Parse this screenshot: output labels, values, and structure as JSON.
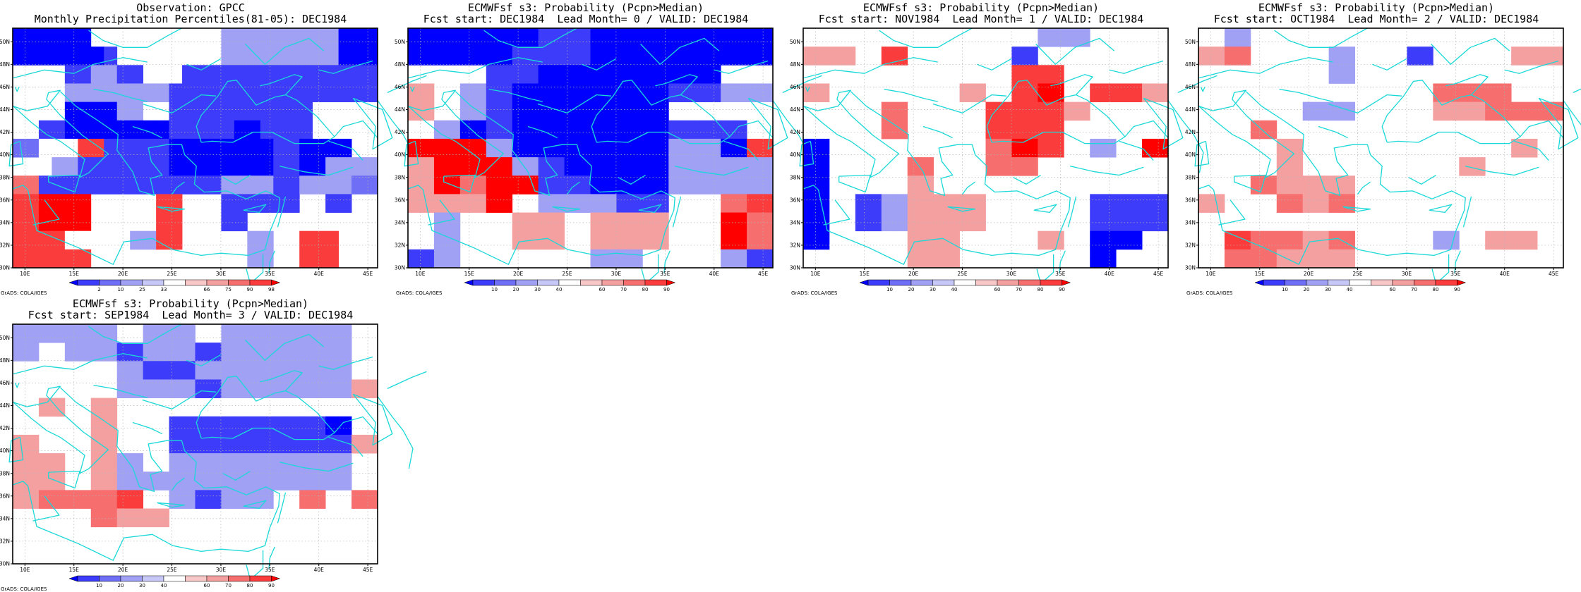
{
  "colors": {
    "blue_strong": "#0000ff",
    "blue_mid": "#3c3cfa",
    "blue_light1": "#6e6ef7",
    "blue_light2": "#a0a0f5",
    "blue_light3": "#c8c8f8",
    "neutral": "#ffffff",
    "red_light3": "#f8c8c8",
    "red_light2": "#f5a0a0",
    "red_light1": "#f76e6e",
    "red_mid": "#fa3c3c",
    "red_strong": "#ff0000",
    "coast": "#1ad8d8",
    "grid": "#b4b4b4"
  },
  "axes": {
    "lon_ticks": [
      "10E",
      "15E",
      "20E",
      "25E",
      "30E",
      "35E",
      "40E",
      "45E"
    ],
    "lat_ticks": [
      "30N",
      "32N",
      "34N",
      "36N",
      "38N",
      "40N",
      "42N",
      "44N",
      "46N",
      "48N",
      "50N"
    ]
  },
  "panels": [
    {
      "title_line1": "Observation: GPCC",
      "title_line2": "Monthly Precipitation Percentiles(81-05): DEC1984",
      "colorbar_labels": [
        "2",
        "10",
        "25",
        "33",
        "66",
        "75",
        "90",
        "98"
      ],
      "credit": "GrADS: COLA/IGES",
      "grid": [
        "BBBBBBWWWWWWWWWWLLLLLLLLLBBB",
        "BBBBBBWWWWWWWWWWLLLLLLLLLBBB",
        "BBBBBBBMWWWWWWWWLLLLLLLLLBBB",
        "BBBBBBBMWWWWWWWWLLLLLLLLLBBB",
        "WWWWMMLLMMWWWMMMMMMMMMMMMMMM",
        "WWWWMMLLMMWWWMMMMMMMMMMMMMMM",
        "WWWWLLLLLLLLMMMMMMMMMMMMMMMM",
        "WWWWLLLLLLLLMMMMMMMMMMMMMMMM",
        "WWWWBBBBLLWWMMMMMMMMMMMWWWWW",
        "WWWWBBBBLLWWMMMMMMMMMMMWWWWW",
        "WWMMBBBBBBBBMMMMMBBMMMMWWWWW",
        "WWMMBBBBBBBBMMMMMBBMMMMWWWWW",
        "bbwwwrrMMMMMBBBBBBBBMMBBBBWW",
        "bbwwwrrMMMMMBBBBBBBBMMBBBBWW",
        "WWWLLMMMMMMMBBBBBBBBMMBBLLLL",
        "WWWLLMMMMMMMBBBBBBBBMMBBLLLL",
        "mmMMMMMMMMMMMMMMLLLLMMLLLLbb",
        "mmMMMMMMMMMMMMMMLLLLMMLLLLbb",
        "rrRRRRWWWWWrrWWWMMMMMMWWMMWW",
        "rrRRRRWWWWWrrWWWMMMMMMWWMMWW",
        "rrRRRRWWWWWrrWWWMMWWWWWWWWWW",
        "rrRRRRWWWWWrrWWWMMWWWWWWWWWW",
        "rrrrwwWWWLLrrWWWWWLLWWrrrWWW",
        "rrrrwwWWWLLrrWWWWWLLWWrrrWWW",
        "rrrrrrWWWWWWWWWWWWLLWWrrrWWW",
        "rrrrrrWWWWWWWWWWWWLLWWrrrWWW"
      ]
    },
    {
      "title_line1": "ECMWFsf s3: Probability (Pcpn>Median)",
      "title_line2": "Fcst start: DEC1984  Lead Month= 0 / VALID: DEC1984",
      "colorbar_labels": [
        "10",
        "20",
        "30",
        "40",
        "60",
        "70",
        "80",
        "90"
      ],
      "credit": "GrADS: COLA/IGES",
      "grid": [
        "BBBBBBBBBBMMMMBBBBBBBBBBBBBB",
        "BBBBBBBBBBMMMMBBBBBBBBBBBBBB",
        "BBBBBBBBMMMMMMBBBBBBBBBBBBBB",
        "BBBBBBBBMMMMMMBBBBBBBBBBBBBB",
        "WWWWWWMMMMBBBBBBBBBBBBBBWWWW",
        "WWWWWWMMMMBBBBBBBBBBBBBBWWWW",
        "ppWWLLMMBBBBBBBBBBBBMMMMLLLL",
        "ppWWLLMMBBBBBBBBBBBBMMMMLLLL",
        "ppWWLLMMBBBBBBBBBBBBWWWWWWWW",
        "ppWWLLMMBBBBBBBBBBBBWWWWWWWW",
        "WWLLBBMMBBBBBBBBBBBBMMMMMMWW",
        "WWLLBBMMBBBBBBBBBBBBMMMMMMWW",
        "RRRRRRLLBBBBBBBBBBBBLLLLBBrr",
        "RRRRRRLLBBBBBBBBBBBBLLLLBBrr",
        "ppRRRRRRLLMMBBBBBBBBLLLLLLLL",
        "ppRRRRRRLLMMBBBBBBBBLLLLLLLL",
        "ppRRmmRRRRMMMMBBBBBBLLLLLLLL",
        "ppRRmmRRRRMMMMBBBBBBLLLLLLLL",
        "ppppppRRWWLLLLLLMMMMWWWWmmrr",
        "ppppppRRWWLLLLLLMMMMWWWWmmrr",
        "WWLLWWWWppppWWppppppWWWWRRmm",
        "WWLLWWWWppppWWppppppWWWWRRmm",
        "WWLLWWWWppppWWppppppWWWWRRmm",
        "WWLLWWWWppppWWppppppWWWWRRmm",
        "MMLLWWWWWWWWWWLLLLWWWWWWLLMM",
        "MMLLWWWWWWWWWWLLLLWWWWWWLLMM"
      ]
    },
    {
      "title_line1": "ECMWFsf s3: Probability (Pcpn>Median)",
      "title_line2": "Fcst start: NOV1984  Lead Month= 1 / VALID: DEC1984",
      "colorbar_labels": [
        "10",
        "20",
        "30",
        "40",
        "60",
        "70",
        "80",
        "90"
      ],
      "credit": "GrADS: COLA/IGES",
      "grid": [
        "WWWWWWWWWWWWWWWWWWLLLLWWWWWW",
        "WWWWWWWWWWWWWWWWWWLLLLWWWWWW",
        "ppppWWrrWWWWWWWWMMWWWWWWWWWW",
        "ppppWWrrWWWWWWWWMMWWWWWWWWWW",
        "WWWWWWWWWWWWWWWWrrrrWWWWWWWW",
        "WWWWWWWWWWWWWWWWrrrrWWWWWWWW",
        "ppWWWWWWWWWWppWWrrRRWWrrrrpp",
        "ppWWWWWWWWWWppWWrrRRWWrrrrpp",
        "WWWWWWmmWWWWWWrrrrrrppWWWWWW",
        "WWWWWWmmWWWWWWrrrrrrppWWWWWW",
        "WWWWWWmmWWWWWWrrrrrrWWWWWWWW",
        "WWWWWWmmWWWWWWrrrrrrWWWWWWWW",
        "BBWWWWWWWWWWWWmmRRrrWWLLWWRR",
        "BBWWWWWWWWWWWWmmRRrrWWLLWWRR",
        "BBWWWWWWmmWWWWmmmmWWWWWWWWWW",
        "BBWWWWWWmmWWWWmmmmWWWWWWWWWW",
        "BBWWWWWWppWWWWWWWWWWWWWWWWWW",
        "BBWWWWWWppWWWWWWWWWWWWWWWWWW",
        "BBWWMMLLppppppWWWWWWWWMMMMMM",
        "BBWWMMLLppppppWWWWWWWWMMMMMM",
        "BBWWMMLLppppppWWWWWWWWMMMMMM",
        "BBWWMMLLppppppWWWWWWWWMMMMMM",
        "BBWWWWWWppppWWWWWWppWWBBBBWW",
        "BBWWWWWWppppWWWWWWppWWBBBBWW",
        "WWWWWWWWppppWWWWWWWWWWBBWWWW",
        "WWWWWWWWppppWWWWWWWWWWBBWWWW"
      ]
    },
    {
      "title_line1": "ECMWFsf s3: Probability (Pcpn>Median)",
      "title_line2": "Fcst start: OCT1984  Lead Month= 2 / VALID: DEC1984",
      "colorbar_labels": [
        "10",
        "20",
        "30",
        "40",
        "60",
        "70",
        "80",
        "90"
      ],
      "credit": "GrADS: COLA/IGES",
      "grid": [
        "WWLLWWWWWWWWWWWWWWWWWWWWWWWW",
        "WWLLWWWWWWWWWWWWWWWWWWWWWWWW",
        "ppmmWWWWWWLLWWWWMMWWWWWWpppp",
        "ppmmWWWWWWLLWWWWMMWWWWWWpppp",
        "WWWWWWWWWWLLWWWWWWWWWWWWWWWW",
        "WWWWWWWWWWLLWWWWWWWWWWWWWWWW",
        "WWWWWWWWWWWWWWWWWWmmmmmmWWWW",
        "WWWWWWWWWWWWWWWWWWmmmmmmWWWW",
        "WWWWWWWWLLLLWWWWWWppppmmmmmm",
        "WWWWWWWWLLLLWWWWWWppppmmmmmm",
        "WWWWmmWWWWWWWWWWWWWWWWWWWWWW",
        "WWWWmmWWWWWWWWWWWWWWWWWWWWWW",
        "WWWWWWppWWWWWWWWWWWWWWWWppWW",
        "WWWWWWppWWWWWWWWWWWWWWWWppWW",
        "WWWWWWppWWWWWWWWWWWWppWWWWWW",
        "WWWWWWppWWWWWWWWWWWWppWWWWWW",
        "WWWWmmppppppWWWWWWWWWWWWWWWW",
        "WWWWmmppppppWWWWWWWWWWWWWWWW",
        "ppWWWWmmppmmWWWWWWWWWWWWWWWW",
        "ppWWWWmmppmmWWWWWWWWWWWWWWWW",
        "WWWWWWWWWWWWWWWWWWWWWWWWWWWW",
        "WWWWWWWWWWWWWWWWWWWWWWWWWWWW",
        "WWrrmmmmppmmWWWWWWLLWWppppWW",
        "WWrrmmmmppmmWWWWWWLLWWppppWW",
        "WWmmmmppppppWWWWWWWWWWWWWWWW",
        "WWmmmmppppppWWWWWWWWWWWWWWWW"
      ]
    },
    {
      "title_line1": "ECMWFsf s3: Probability (Pcpn>Median)",
      "title_line2": "Fcst start: SEP1984  Lead Month= 3 / VALID: DEC1984",
      "colorbar_labels": [
        "10",
        "20",
        "30",
        "40",
        "60",
        "70",
        "80",
        "90"
      ],
      "credit": "GrADS: COLA/IGES",
      "grid": [
        "LLLLLLLLWWLLLLWWLLLLLLLLLLWW",
        "LLLLLLLLWWLLLLWWLLLLLLLLLLWW",
        "LLWWLLLLMMLLLLMMLLLLLLLLLLWW",
        "LLWWLLLLMMLLLLMMLLLLLLLLLLWW",
        "WWWWWWWWLLMMMMLLLLLLLLLLLLWW",
        "WWWWWWWWLLMMMMLLLLLLLLLLLLWW",
        "WWWWWWWWLLLLLLMMLLLLLLLLLLpp",
        "WWWWWWWWLLLLLLMMLLLLLLLLLLpp",
        "WWppWWppWWWWWWWWWWWWWWWWWWWW",
        "WWppWWppWWWWWWWWWWWWWWWWWWWW",
        "WWWWWWppWWWWMMMMMMMMMMMMBBWW",
        "WWWWWWppWWWWMMMMMMMMMMMMBBWW",
        "ppWWWWppWWWWMMMMMMMMMMMMMMpp",
        "ppWWWWppWWWWMMMMMMMMMMMMMMpp",
        "ppppWWppLLWWLLLLLLLLLLLLLLWW",
        "ppppWWppLLWWLLLLLLLLLLLLLLWW",
        "ppppWWppLLLLLLLLLLLLLLLLLLWW",
        "ppppWWppLLLLLLLLLLLLLLLLLLWW",
        "ppmmmmmmrrWWLLMMLLLLWWmmWWmm",
        "ppmmmmmmrrWWLLMMLLLLWWmmWWmm",
        "WWWWWWmmppppWWWWWWWWWWWWWWWW",
        "WWWWWWmmppppWWWWWWWWWWWWWWWW",
        "WWWWWWWWWWWWWWWWWWWWWWWWWWWW",
        "WWWWWWWWWWWWWWWWWWWWWWWWWWWW",
        "WWWWWWWWWWWWWWWWWWWWWWWWWWWW",
        "WWWWWWWWWWWWWWWWWWWWWWWWWWWW"
      ]
    }
  ]
}
